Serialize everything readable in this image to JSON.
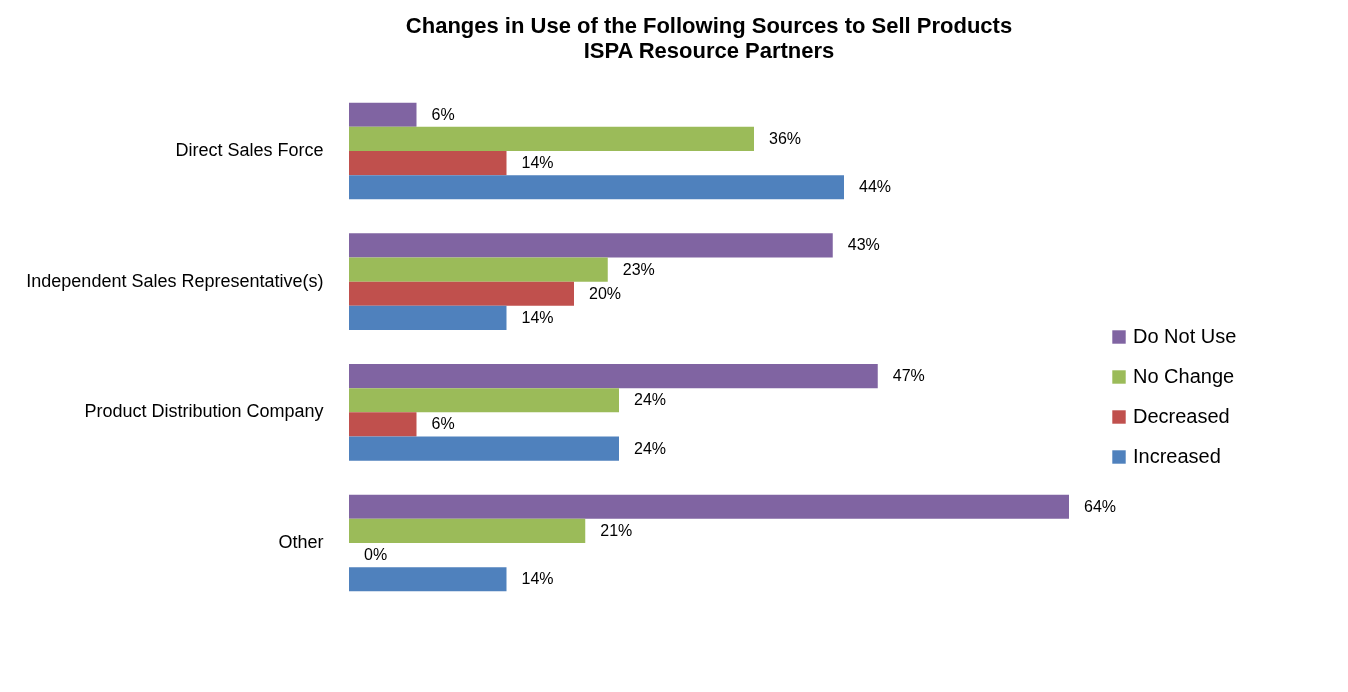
{
  "chart_data": {
    "type": "bar",
    "orientation": "horizontal",
    "title": "Changes in Use of the Following Sources to Sell Products",
    "subtitle": "ISPA Resource Partners",
    "categories": [
      "Direct Sales Force",
      "Independent Sales Representative(s)",
      "Product Distribution Company",
      "Other"
    ],
    "series": [
      {
        "name": "Do Not Use",
        "color": "#8064a2",
        "values": [
          6,
          43,
          47,
          64
        ],
        "value_labels": [
          "6%",
          "43%",
          "47%",
          "64%"
        ]
      },
      {
        "name": "No Change",
        "color": "#9bbb59",
        "values": [
          36,
          23,
          24,
          21
        ],
        "value_labels": [
          "36%",
          "23%",
          "24%",
          "21%"
        ]
      },
      {
        "name": "Decreased",
        "color": "#c0504d",
        "values": [
          14,
          20,
          6,
          0
        ],
        "value_labels": [
          "14%",
          "20%",
          "6%",
          "0%"
        ]
      },
      {
        "name": "Increased",
        "color": "#4f81bd",
        "values": [
          44,
          14,
          24,
          14
        ],
        "value_labels": [
          "44%",
          "14%",
          "24%",
          "14%"
        ]
      }
    ],
    "legend": "right"
  }
}
